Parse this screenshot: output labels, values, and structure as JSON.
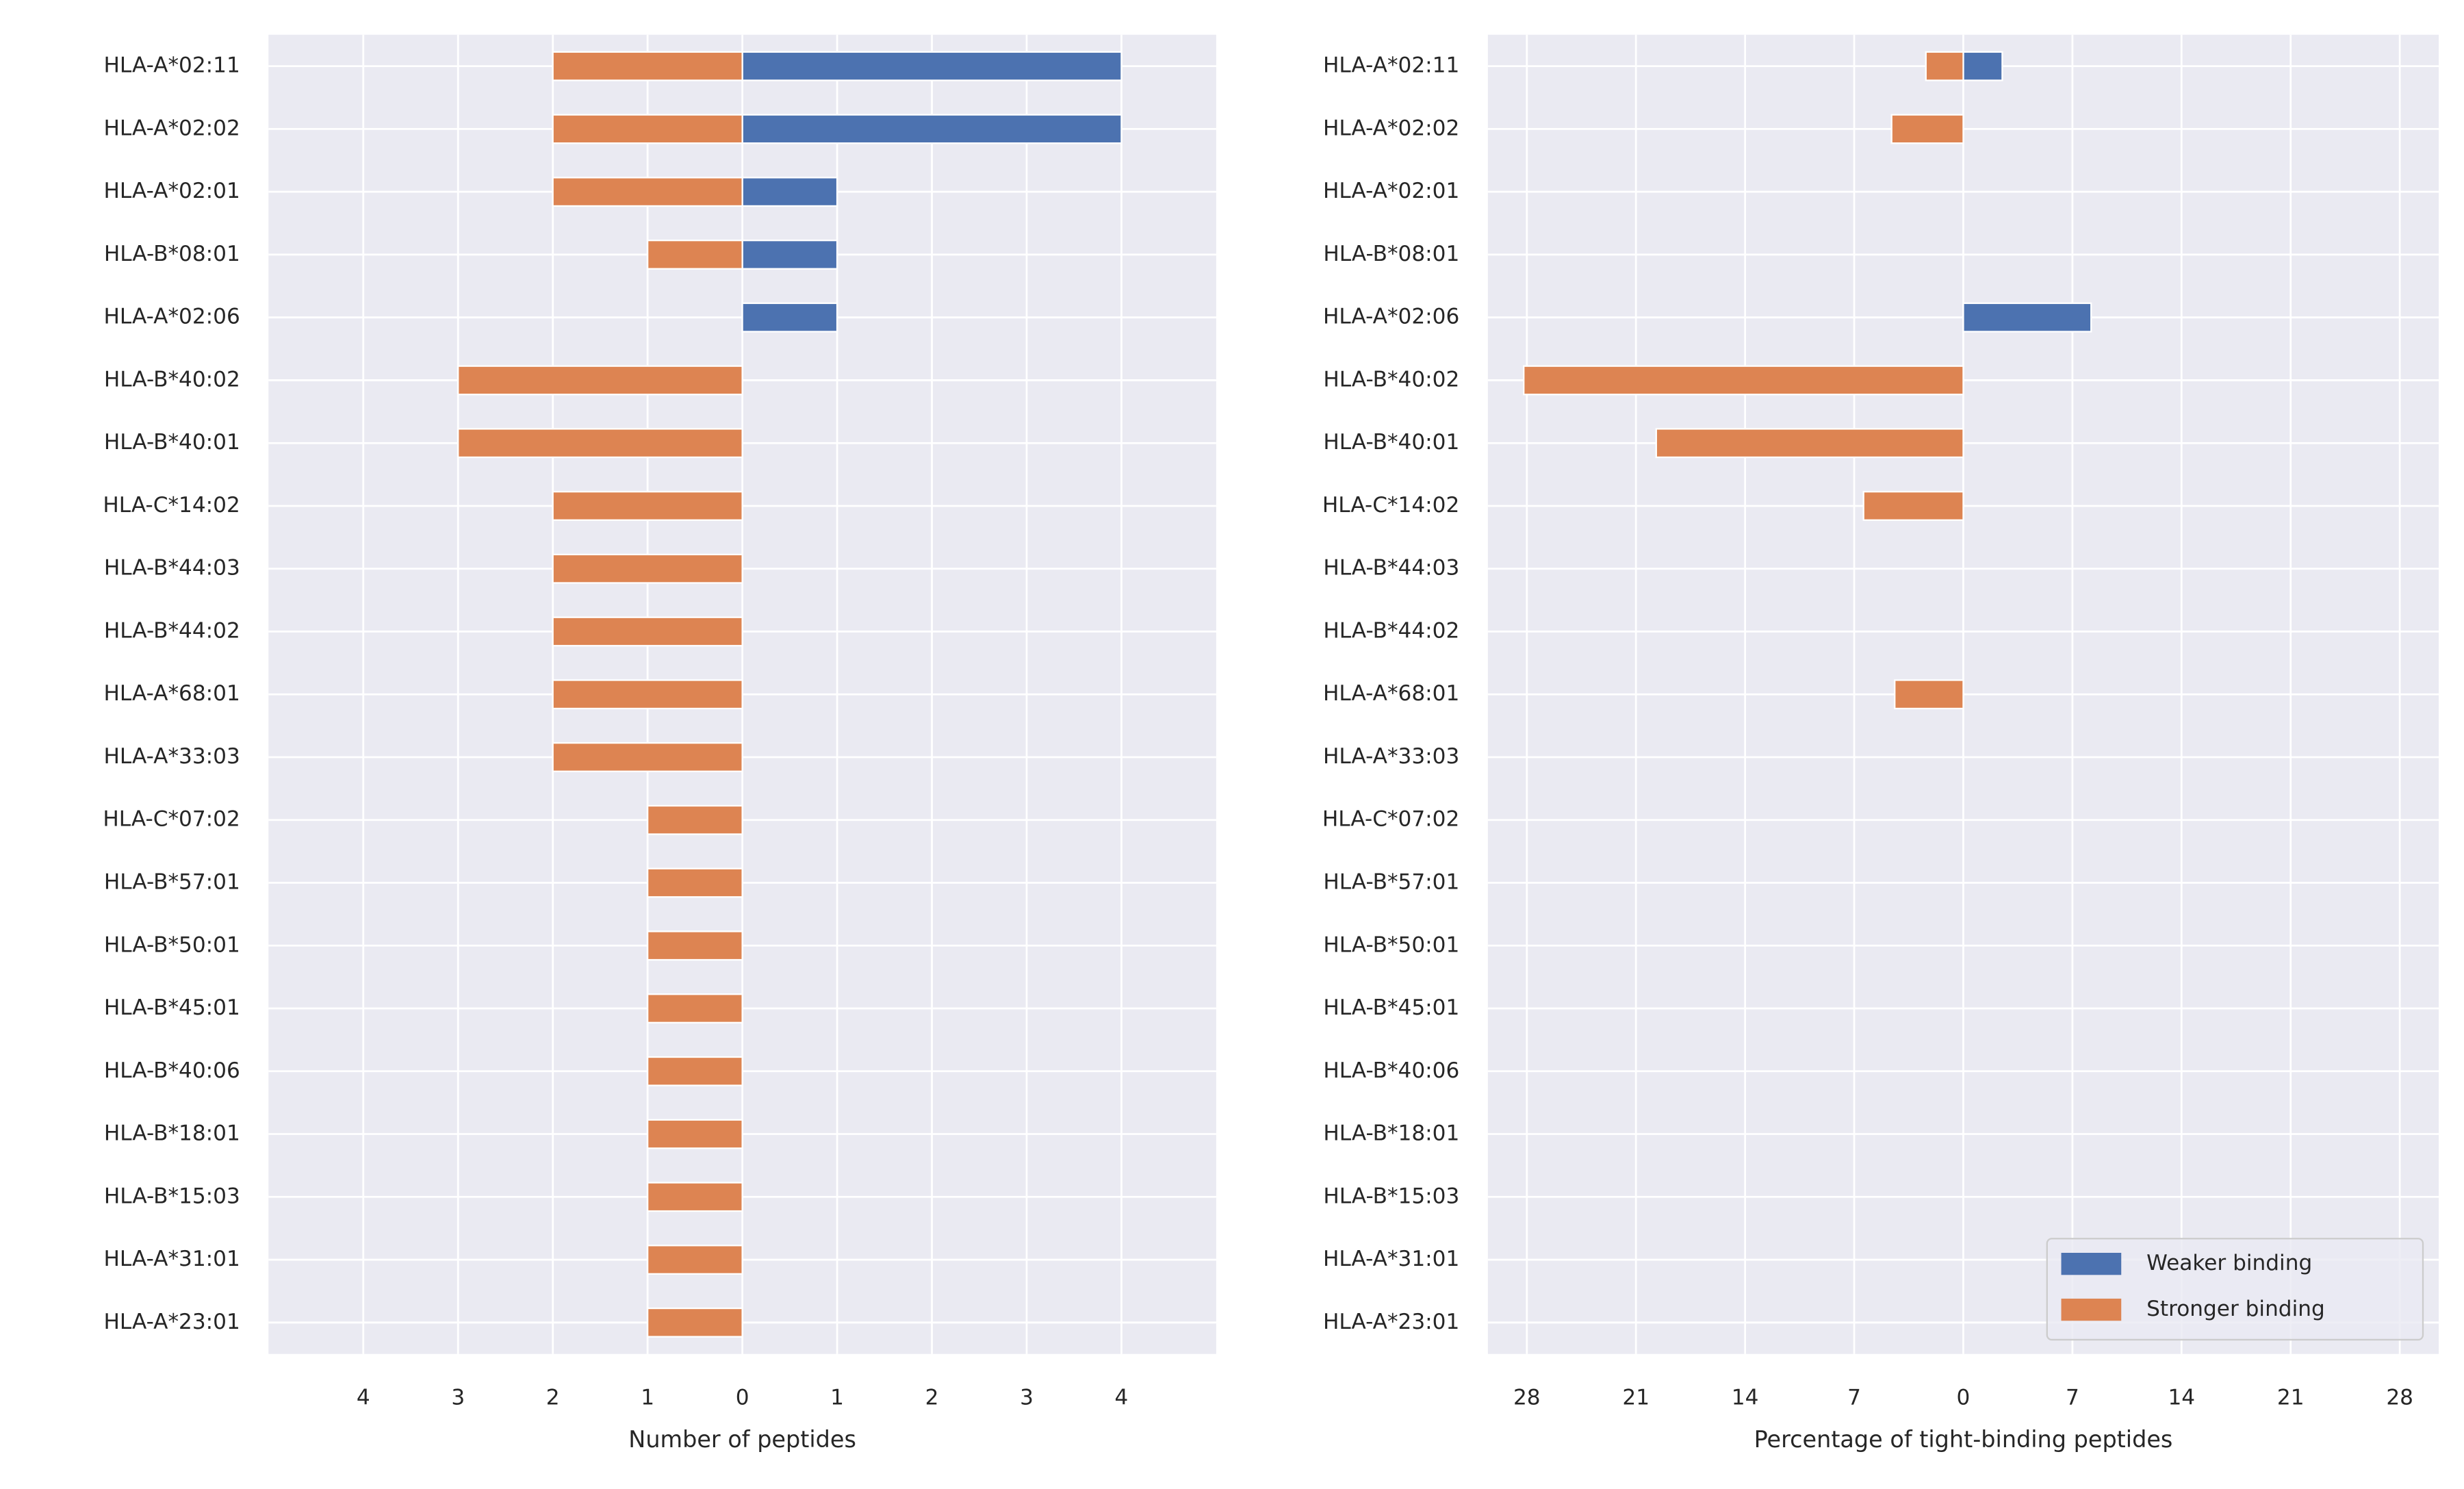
{
  "chart_data": [
    {
      "type": "bar",
      "orientation": "horizontal",
      "xlabel": "Number of peptides",
      "categories": [
        "HLA-A*02:11",
        "HLA-A*02:02",
        "HLA-A*02:01",
        "HLA-B*08:01",
        "HLA-A*02:06",
        "HLA-B*40:02",
        "HLA-B*40:01",
        "HLA-C*14:02",
        "HLA-B*44:03",
        "HLA-B*44:02",
        "HLA-A*68:01",
        "HLA-A*33:03",
        "HLA-C*07:02",
        "HLA-B*57:01",
        "HLA-B*50:01",
        "HLA-B*45:01",
        "HLA-B*40:06",
        "HLA-B*18:01",
        "HLA-B*15:03",
        "HLA-A*31:01",
        "HLA-A*23:01"
      ],
      "series": [
        {
          "color": "#4c72b0",
          "values": [
            4,
            4,
            1,
            1,
            1,
            0,
            0,
            0,
            0,
            0,
            0,
            0,
            0,
            0,
            0,
            0,
            0,
            0,
            0,
            0,
            0
          ]
        },
        {
          "color": "#dd8452",
          "values": [
            -2,
            -2,
            -2,
            -1,
            0,
            -3,
            -3,
            -2,
            -2,
            -2,
            -2,
            -2,
            -1,
            -1,
            -1,
            -1,
            -1,
            -1,
            -1,
            -1,
            -1
          ]
        }
      ],
      "xlim": [
        -5,
        5
      ],
      "xticks": [
        {
          "value": -4,
          "label": "4"
        },
        {
          "value": -3,
          "label": "3"
        },
        {
          "value": -2,
          "label": "2"
        },
        {
          "value": -1,
          "label": "1"
        },
        0,
        1,
        2,
        3,
        4
      ],
      "grid": true
    },
    {
      "type": "bar",
      "orientation": "horizontal",
      "xlabel": "Percentage of tight-binding peptides",
      "categories": [
        "HLA-A*02:11",
        "HLA-A*02:02",
        "HLA-A*02:01",
        "HLA-B*08:01",
        "HLA-A*02:06",
        "HLA-B*40:02",
        "HLA-B*40:01",
        "HLA-C*14:02",
        "HLA-B*44:03",
        "HLA-B*44:02",
        "HLA-A*68:01",
        "HLA-A*33:03",
        "HLA-C*07:02",
        "HLA-B*57:01",
        "HLA-B*50:01",
        "HLA-B*45:01",
        "HLA-B*40:06",
        "HLA-B*18:01",
        "HLA-B*15:03",
        "HLA-A*31:01",
        "HLA-A*23:01"
      ],
      "series": [
        {
          "name": "Weaker binding",
          "color": "#4c72b0",
          "values": [
            2.5,
            0,
            0,
            0,
            8.2,
            0,
            0,
            0,
            0,
            0,
            0,
            0,
            0,
            0,
            0,
            0,
            0,
            0,
            0,
            0,
            0
          ]
        },
        {
          "name": "Stronger binding",
          "color": "#dd8452",
          "values": [
            -2.4,
            -4.6,
            0,
            0,
            0,
            -28.2,
            -19.7,
            -6.4,
            0,
            0,
            -4.4,
            0,
            0,
            0,
            0,
            0,
            0,
            0,
            0,
            0,
            0
          ]
        }
      ],
      "xlim": [
        -30.5,
        30.5
      ],
      "xticks": [
        {
          "value": -28,
          "label": "28"
        },
        {
          "value": -21,
          "label": "21"
        },
        {
          "value": -14,
          "label": "14"
        },
        {
          "value": -7,
          "label": "7"
        },
        0,
        7,
        14,
        21,
        28
      ],
      "grid": true,
      "legend": "lower right"
    }
  ]
}
